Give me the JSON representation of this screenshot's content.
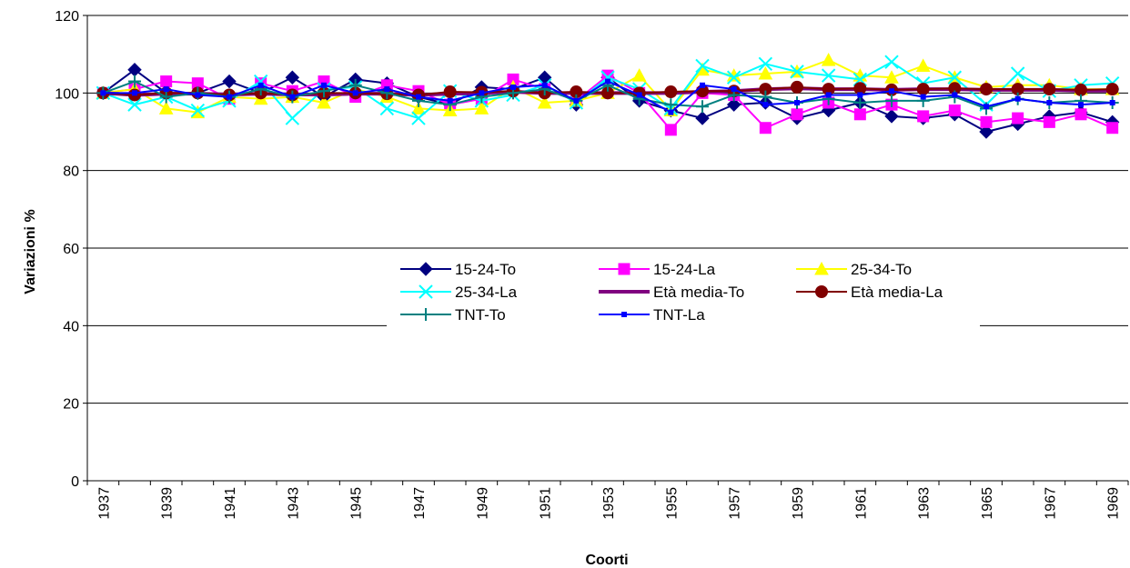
{
  "chart_data": {
    "type": "line",
    "xlabel": "Coorti",
    "ylabel": "Variazioni %",
    "ylim": [
      0,
      120
    ],
    "yticks": [
      0,
      20,
      40,
      60,
      80,
      100,
      120
    ],
    "grid": "horizontal",
    "legend_position": "center",
    "x": [
      1937,
      1938,
      1939,
      1940,
      1941,
      1942,
      1943,
      1944,
      1945,
      1946,
      1947,
      1948,
      1949,
      1950,
      1951,
      1952,
      1953,
      1954,
      1955,
      1956,
      1957,
      1958,
      1959,
      1960,
      1961,
      1962,
      1963,
      1964,
      1965,
      1966,
      1967,
      1968,
      1969
    ],
    "xtick_labels": [
      "1937",
      "1939",
      "1941",
      "1943",
      "1945",
      "1947",
      "1949",
      "1951",
      "1953",
      "1955",
      "1957",
      "1959",
      "1961",
      "1963",
      "1965",
      "1967",
      "1969"
    ],
    "series": [
      {
        "name": "15-24-To",
        "color": "#000080",
        "marker": "diamond",
        "values": [
          100,
          106,
          100,
          100,
          103,
          100,
          104,
          99,
          103.5,
          102.5,
          99,
          97,
          101.5,
          101,
          104,
          97,
          104,
          98,
          95.5,
          93.5,
          97,
          97.5,
          93.5,
          95.5,
          97.5,
          94,
          93.5,
          94.5,
          90,
          92,
          94,
          95,
          92.5
        ]
      },
      {
        "name": "15-24-La",
        "color": "#FF00FF",
        "marker": "square",
        "values": [
          100,
          101,
          103,
          102.5,
          98.5,
          102.5,
          100.5,
          103,
          99,
          102,
          100.5,
          97,
          98.5,
          103.5,
          101,
          98,
          104.5,
          100,
          90.5,
          100,
          99.5,
          91,
          94.5,
          97.5,
          94.5,
          97,
          94,
          95.5,
          92.5,
          93.5,
          92.5,
          94.5,
          91
        ]
      },
      {
        "name": "25-34-To",
        "color": "#FFFF00",
        "marker": "triangle",
        "values": [
          100,
          101,
          96,
          95,
          99,
          98.5,
          99,
          97.5,
          101,
          99,
          96,
          95.5,
          96,
          101.5,
          97.5,
          98,
          100,
          104.5,
          95.5,
          106,
          104.5,
          105,
          105.5,
          108.5,
          104.5,
          104,
          107,
          104,
          101.5,
          102,
          102,
          101,
          101
        ]
      },
      {
        "name": "25-34-La",
        "color": "#00FFFF",
        "marker": "x",
        "values": [
          100,
          97,
          99,
          95.5,
          98,
          103,
          93.5,
          101,
          101.5,
          96,
          93.5,
          100.5,
          98,
          99.5,
          102,
          97.5,
          104,
          101,
          96,
          107,
          104,
          107.5,
          105.5,
          104.5,
          103.5,
          108,
          102.5,
          104,
          97,
          105,
          100.5,
          102,
          102.5
        ]
      },
      {
        "name": "Età media-To",
        "color": "#800080",
        "marker": "none",
        "values": [
          100,
          99.5,
          99.8,
          99.8,
          99.6,
          99.8,
          99.6,
          99.6,
          99.8,
          99.8,
          99.5,
          99.8,
          100,
          100.3,
          100,
          100,
          100,
          100,
          100,
          100.3,
          100.5,
          101,
          101.2,
          101,
          101,
          100.8,
          101,
          101,
          100.8,
          100.8,
          100.8,
          100.6,
          100.6
        ]
      },
      {
        "name": "Età media-La",
        "color": "#800000",
        "marker": "circle",
        "values": [
          100,
          99.5,
          100,
          100,
          99.5,
          100,
          99.5,
          100,
          100,
          99.8,
          99.5,
          100.3,
          100.2,
          100.5,
          100,
          100.3,
          100,
          100,
          100.3,
          100.5,
          100.5,
          101,
          101.5,
          101,
          101.2,
          100.8,
          101,
          101.2,
          101,
          101,
          101,
          100.8,
          101
        ]
      },
      {
        "name": "TNT-To",
        "color": "#008080",
        "marker": "plus",
        "values": [
          100,
          103,
          99,
          100,
          99,
          101,
          99,
          100.5,
          102,
          100,
          98,
          97,
          99,
          100,
          101,
          98,
          102,
          98.5,
          97,
          96.5,
          99.5,
          99,
          97.5,
          98.5,
          97.5,
          98,
          98,
          99,
          96,
          98.5,
          97.5,
          98,
          97.5
        ]
      },
      {
        "name": "TNT-La",
        "color": "#0000FF",
        "marker": "smallsquare",
        "values": [
          100,
          100,
          101,
          99.5,
          99,
          102,
          99,
          102,
          100,
          101,
          99,
          98,
          100,
          101.5,
          102,
          98,
          103,
          99.5,
          95,
          102,
          101,
          97,
          97.5,
          99.5,
          99.5,
          100.5,
          99,
          99.5,
          96.5,
          98.5,
          97.5,
          97,
          97.5
        ]
      }
    ]
  }
}
